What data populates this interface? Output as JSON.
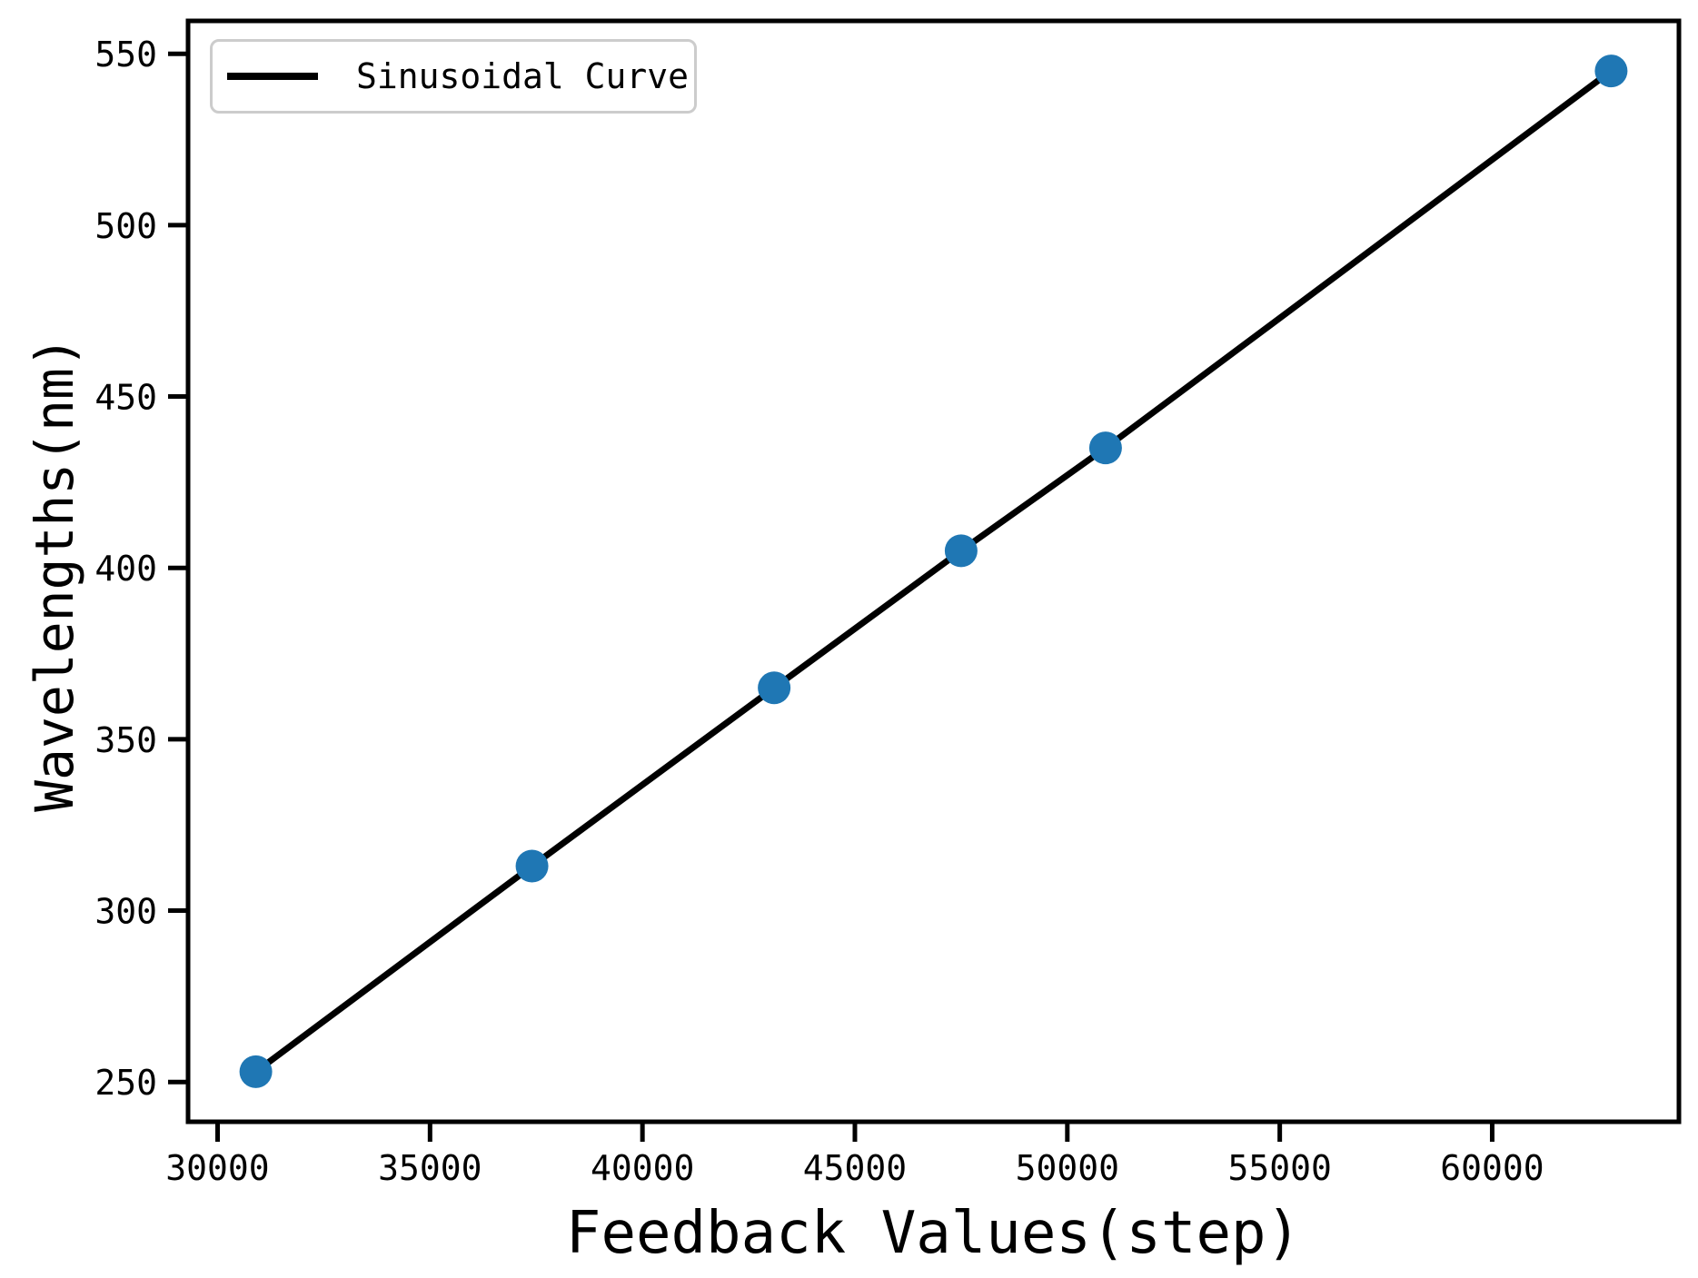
{
  "figure": {
    "background": "#ffffff",
    "text_color": "#000000",
    "spine_color": "#000000"
  },
  "chart_data": {
    "type": "line",
    "title": "",
    "xlabel": "Feedback Values(step)",
    "ylabel": "Wavelengths(nm)",
    "x": [
      30900,
      37400,
      43100,
      47500,
      50900,
      62800
    ],
    "series": [
      {
        "name": "Sinusoidal Curve",
        "style": "line-with-scatter-markers",
        "line_color": "#000000",
        "line_width": 7,
        "marker_color": "#1f77b4",
        "marker_radius": 18,
        "values": [
          253,
          313,
          365,
          405,
          435,
          545
        ]
      }
    ],
    "xticks": [
      30000,
      35000,
      40000,
      45000,
      50000,
      55000,
      60000
    ],
    "yticks": [
      250,
      300,
      350,
      400,
      450,
      500,
      550
    ],
    "xlim": [
      29305,
      64395
    ],
    "ylim": [
      238.4,
      559.6
    ],
    "grid": false,
    "legend": {
      "position": "upper-left",
      "entries": [
        {
          "label": "Sinusoidal Curve",
          "swatch": "line",
          "color": "#000000"
        }
      ]
    }
  }
}
